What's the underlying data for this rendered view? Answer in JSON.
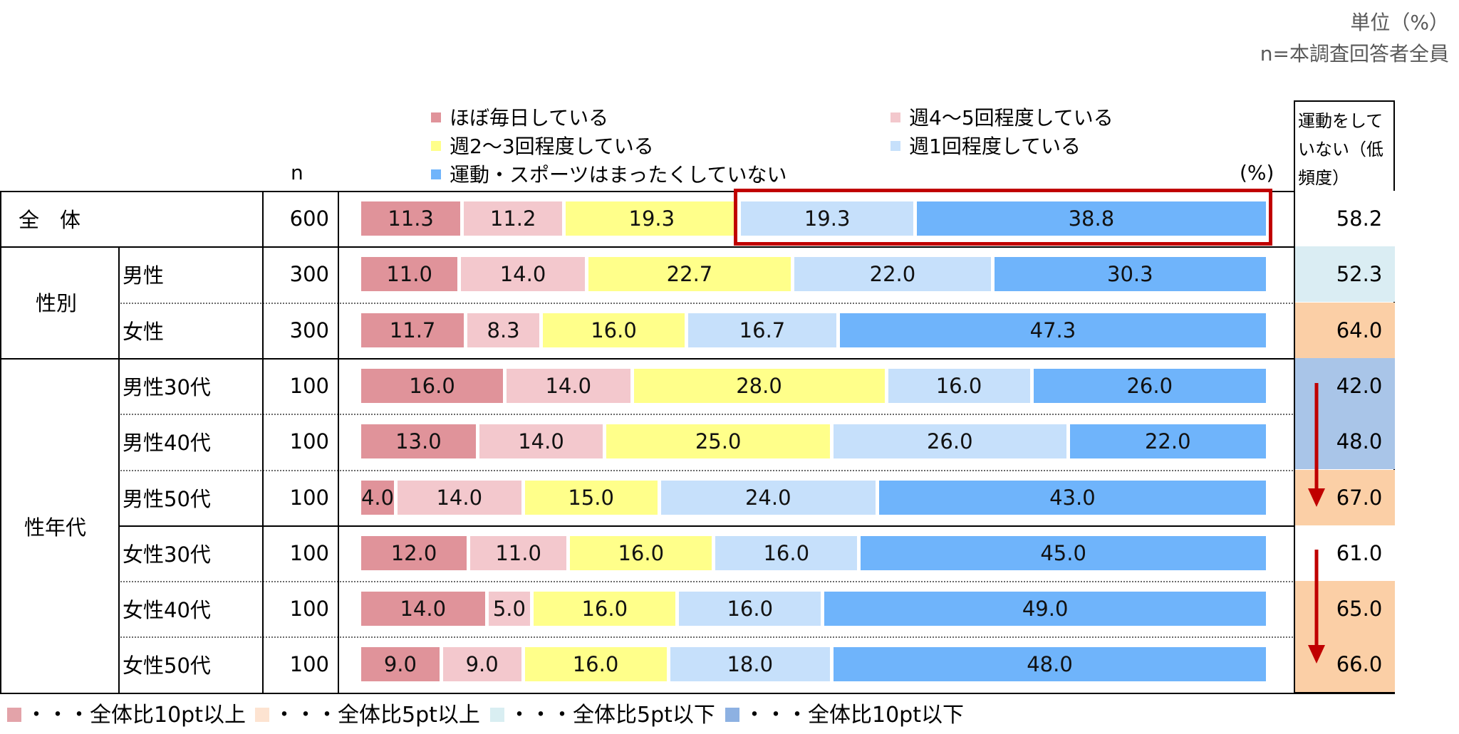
{
  "unit_label": "単位（%）",
  "sample_note": "n=本調査回答者全員",
  "legend": [
    {
      "label": "ほぼ毎日している",
      "color": "#e0939a"
    },
    {
      "label": "週4～5回程度している",
      "color": "#f3c8cd"
    },
    {
      "label": "週2～3回程度している",
      "color": "#ffff8a"
    },
    {
      "label": "週1回程度している",
      "color": "#c6e0fb"
    },
    {
      "label": "運動・スポーツはまったくしていない",
      "color": "#6fb4fb"
    }
  ],
  "header": {
    "n_label": "n",
    "percent_label": "(%)",
    "right_col_line1": "運動をして",
    "right_col_line2": "いない（低",
    "right_col_line3": "頻度）"
  },
  "groups": {
    "total": "全　体",
    "gender": "性別",
    "gender_age": "性年代"
  },
  "rows": [
    {
      "label": "",
      "n": "600",
      "low_freq": "58.2",
      "highlight": "none"
    },
    {
      "label": "男性",
      "n": "300",
      "low_freq": "52.3",
      "highlight": "lightblue"
    },
    {
      "label": "女性",
      "n": "300",
      "low_freq": "64.0",
      "highlight": "peach"
    },
    {
      "label": "男性30代",
      "n": "100",
      "low_freq": "42.0",
      "highlight": "blue"
    },
    {
      "label": "男性40代",
      "n": "100",
      "low_freq": "48.0",
      "highlight": "blue"
    },
    {
      "label": "男性50代",
      "n": "100",
      "low_freq": "67.0",
      "highlight": "peach"
    },
    {
      "label": "女性30代",
      "n": "100",
      "low_freq": "61.0",
      "highlight": "none"
    },
    {
      "label": "女性40代",
      "n": "100",
      "low_freq": "65.0",
      "highlight": "peach"
    },
    {
      "label": "女性50代",
      "n": "100",
      "low_freq": "66.0",
      "highlight": "peach"
    }
  ],
  "chart_data": {
    "type": "bar",
    "orientation": "horizontal-stacked-100",
    "categories": [
      "全体",
      "男性",
      "女性",
      "男性30代",
      "男性40代",
      "男性50代",
      "女性30代",
      "女性40代",
      "女性50代"
    ],
    "series": [
      {
        "name": "ほぼ毎日している",
        "values": [
          11.3,
          11.0,
          11.7,
          16.0,
          13.0,
          4.0,
          12.0,
          14.0,
          9.0
        ]
      },
      {
        "name": "週4～5回程度している",
        "values": [
          11.2,
          14.0,
          8.3,
          14.0,
          14.0,
          14.0,
          11.0,
          5.0,
          9.0
        ]
      },
      {
        "name": "週2～3回程度している",
        "values": [
          19.3,
          22.7,
          16.0,
          28.0,
          25.0,
          15.0,
          16.0,
          16.0,
          16.0
        ]
      },
      {
        "name": "週1回程度している",
        "values": [
          19.3,
          22.0,
          16.7,
          16.0,
          26.0,
          24.0,
          16.0,
          16.0,
          18.0
        ]
      },
      {
        "name": "運動・スポーツはまったくしていない",
        "values": [
          38.8,
          30.3,
          47.3,
          26.0,
          22.0,
          43.0,
          45.0,
          49.0,
          48.0
        ]
      }
    ],
    "xlim": [
      0,
      100
    ]
  },
  "footnote": [
    {
      "label": "・・・全体比10pt以上",
      "color": "#e3a3a9"
    },
    {
      "label": "・・・全体比5pt以上",
      "color": "#fde3d1"
    },
    {
      "label": "・・・全体比5pt以下",
      "color": "#d9eef2"
    },
    {
      "label": "・・・全体比10pt以下",
      "color": "#8db1e2"
    }
  ],
  "highlight_colors": {
    "lightblue": "#daedf3",
    "peach": "#fbcfa6",
    "blue": "#a9c5e8",
    "none": "#ffffff"
  },
  "accent_color": "#c00000"
}
